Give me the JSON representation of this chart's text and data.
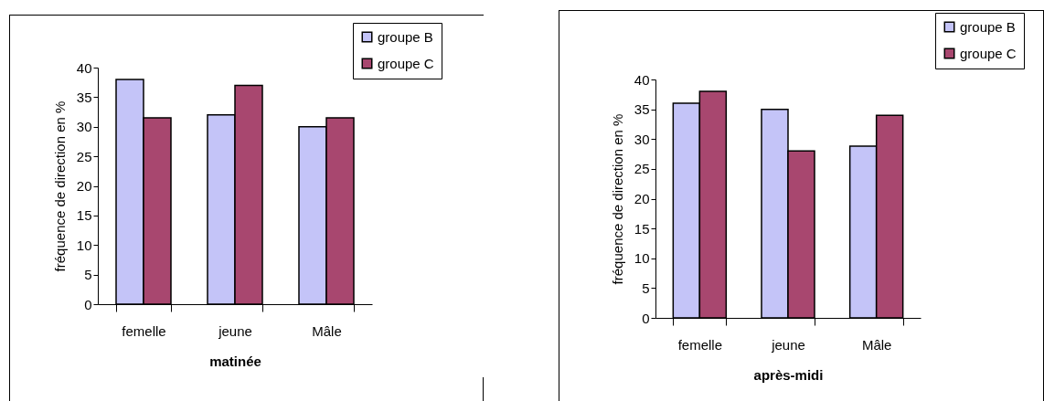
{
  "chart_data": [
    {
      "type": "bar",
      "xlabel": "matinée",
      "ylabel": "fréquence de direction en %",
      "categories": [
        "femelle",
        "jeune",
        "Mâle"
      ],
      "series": [
        {
          "name": "groupe B",
          "color": "#c4c4f8",
          "values": [
            38,
            32,
            30
          ]
        },
        {
          "name": "groupe C",
          "color": "#a8476f",
          "values": [
            31.5,
            37,
            31.5
          ]
        }
      ],
      "ylim": [
        0,
        40
      ],
      "yticks": [
        0,
        5,
        10,
        15,
        20,
        25,
        30,
        35,
        40
      ],
      "grid": false,
      "legend": "top right"
    },
    {
      "type": "bar",
      "xlabel": "après-midi",
      "ylabel": "fréquence de direction en %",
      "categories": [
        "femelle",
        "jeune",
        "Mâle"
      ],
      "series": [
        {
          "name": "groupe B",
          "color": "#c4c4f8",
          "values": [
            36,
            35,
            28.8
          ]
        },
        {
          "name": "groupe C",
          "color": "#a8476f",
          "values": [
            38,
            28,
            34
          ]
        }
      ],
      "ylim": [
        0,
        40
      ],
      "yticks": [
        0,
        5,
        10,
        15,
        20,
        25,
        30,
        35,
        40
      ],
      "grid": false,
      "legend": "top right"
    }
  ]
}
